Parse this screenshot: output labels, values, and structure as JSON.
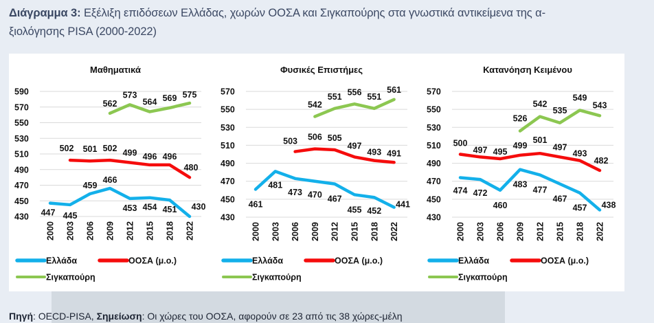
{
  "header": {
    "title_bold": "Διάγραμμα 3:",
    "title_line1": " Εξέλιξη επιδόσεων Ελλάδας, χωρών ΟΟΣΑ και Σιγκαπούρης στα γνωστικά αντικείμενα της α-",
    "title_line2": "ξιολόγησης PISA (2000-2022)"
  },
  "footnote": {
    "source_label": "Πηγή",
    "source_value": ": OECD-PISA, ",
    "note_label": "Σημείωση",
    "note_value": ": Οι χώρες του ΟΟΣΑ, αφορούν σε 23 από τις 38 χώρες-μέλη"
  },
  "legend": [
    {
      "name": "Ελλάδα",
      "color": "#13b0ea"
    },
    {
      "name": "ΟΟΣΑ (μ.ο.)",
      "color": "#f50c0c"
    },
    {
      "name": "Σιγκαπούρη",
      "color": "#8cc751"
    }
  ],
  "chart_data": [
    {
      "type": "line",
      "title": "Μαθηματικά",
      "categories": [
        "2000",
        "2003",
        "2006",
        "2009",
        "2012",
        "2015",
        "2018",
        "2022"
      ],
      "yticks": [
        430,
        450,
        470,
        490,
        510,
        530,
        550,
        570,
        590
      ],
      "ylim": [
        430,
        590
      ],
      "grid": true,
      "legend_position": "bottom",
      "series": [
        {
          "name": "Ελλάδα",
          "values": [
            447,
            445,
            459,
            466,
            453,
            454,
            451,
            430
          ]
        },
        {
          "name": "ΟΟΣΑ (μ.ο.)",
          "values": [
            null,
            502,
            501,
            502,
            499,
            496,
            496,
            480
          ]
        },
        {
          "name": "Σιγκαπούρη",
          "values": [
            null,
            null,
            null,
            562,
            573,
            564,
            569,
            575
          ]
        }
      ]
    },
    {
      "type": "line",
      "title": "Φυσικές Επιστήμες",
      "categories": [
        "2000",
        "2003",
        "2006",
        "2009",
        "2012",
        "2015",
        "2018",
        "2022"
      ],
      "yticks": [
        430,
        450,
        470,
        490,
        510,
        530,
        550,
        570
      ],
      "ylim": [
        430,
        570
      ],
      "grid": true,
      "legend_position": "bottom",
      "series": [
        {
          "name": "Ελλάδα",
          "values": [
            461,
            481,
            473,
            470,
            467,
            455,
            452,
            441
          ]
        },
        {
          "name": "ΟΟΣΑ (μ.ο.)",
          "values": [
            null,
            null,
            503,
            506,
            505,
            497,
            493,
            491
          ]
        },
        {
          "name": "Σιγκαπούρη",
          "values": [
            null,
            null,
            null,
            542,
            551,
            556,
            551,
            561
          ]
        }
      ]
    },
    {
      "type": "line",
      "title": "Κατανόηση Κειμένου",
      "categories": [
        "2000",
        "2003",
        "2006",
        "2009",
        "2012",
        "2015",
        "2018",
        "2022"
      ],
      "yticks": [
        430,
        450,
        470,
        490,
        510,
        530,
        550,
        570
      ],
      "ylim": [
        430,
        570
      ],
      "grid": true,
      "legend_position": "bottom",
      "series": [
        {
          "name": "Ελλάδα",
          "values": [
            474,
            472,
            460,
            483,
            477,
            467,
            457,
            438
          ]
        },
        {
          "name": "ΟΟΣΑ (μ.ο.)",
          "values": [
            500,
            497,
            495,
            499,
            501,
            497,
            493,
            482
          ]
        },
        {
          "name": "Σιγκαπούρη",
          "values": [
            null,
            null,
            null,
            526,
            542,
            535,
            549,
            543
          ]
        }
      ]
    }
  ]
}
